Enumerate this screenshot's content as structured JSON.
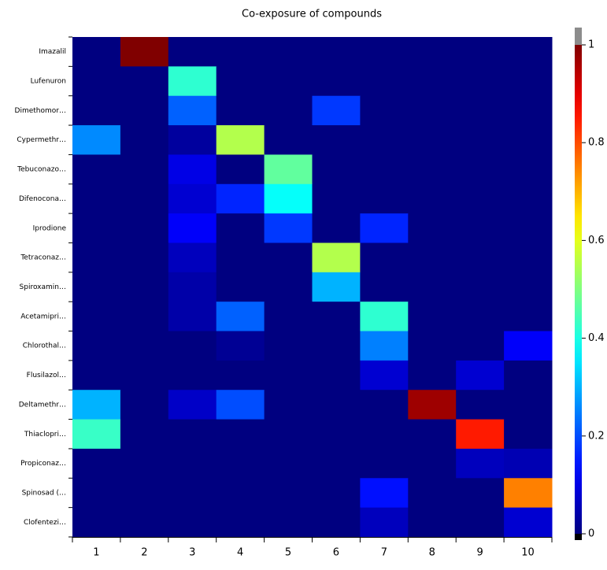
{
  "chart_data": {
    "type": "heatmap",
    "title": "Co-exposure of compounds",
    "rows": [
      "Imazalil",
      "Lufenuron",
      "Dimethomor…",
      "Cypermethr…",
      "Tebuconazo…",
      "Difenocona…",
      "Iprodione",
      "Tetraconaz…",
      "Spiroxamin…",
      "Acetamipri…",
      "Chlorothal…",
      "Flusilazol…",
      "Deltamethr…",
      "Thiaclopri…",
      "Propiconaz…",
      "Spinosad (…",
      "Clofentezi…"
    ],
    "columns": [
      1,
      2,
      3,
      4,
      5,
      6,
      7,
      8,
      9,
      10
    ],
    "values": [
      [
        0,
        1,
        0,
        0,
        0,
        0,
        0,
        0,
        0,
        0
      ],
      [
        0,
        0,
        0.42,
        0,
        0,
        0,
        0,
        0,
        0,
        0
      ],
      [
        0,
        0,
        0.22,
        0,
        0,
        0.18,
        0,
        0,
        0,
        0
      ],
      [
        0.26,
        0,
        0.03,
        0.55,
        0,
        0,
        0,
        0,
        0,
        0
      ],
      [
        0,
        0,
        0.1,
        0,
        0.47,
        0,
        0,
        0,
        0,
        0
      ],
      [
        0,
        0,
        0.08,
        0.16,
        0.38,
        0,
        0,
        0,
        0,
        0
      ],
      [
        0,
        0,
        0.12,
        0,
        0.18,
        0,
        0.16,
        0,
        0,
        0
      ],
      [
        0,
        0,
        0.06,
        0,
        0,
        0.55,
        0,
        0,
        0,
        0
      ],
      [
        0,
        0,
        0.04,
        0,
        0,
        0.3,
        0,
        0,
        0,
        0
      ],
      [
        0,
        0,
        0.04,
        0.22,
        0,
        0,
        0.42,
        0,
        0,
        0
      ],
      [
        0,
        0,
        0,
        0.02,
        0,
        0,
        0.25,
        0,
        0,
        0.12
      ],
      [
        0,
        0,
        0,
        0,
        0,
        0,
        0.08,
        0,
        0.08,
        0
      ],
      [
        0.3,
        0,
        0.07,
        0.2,
        0,
        0,
        0,
        0.97,
        0,
        0
      ],
      [
        0.43,
        0,
        0,
        0,
        0,
        0,
        0,
        0,
        0.85,
        0
      ],
      [
        0,
        0,
        0,
        0,
        0,
        0,
        0,
        0,
        0.06,
        0.05
      ],
      [
        0,
        0,
        0,
        0,
        0,
        0,
        0.14,
        0,
        0,
        0.75
      ],
      [
        0,
        0,
        0,
        0,
        0,
        0,
        0.06,
        0,
        0,
        0.08
      ]
    ],
    "colormap": "jet",
    "clim": [
      0,
      1
    ],
    "cticks": [
      0,
      0.2,
      0.4,
      0.6,
      0.8,
      1
    ]
  }
}
